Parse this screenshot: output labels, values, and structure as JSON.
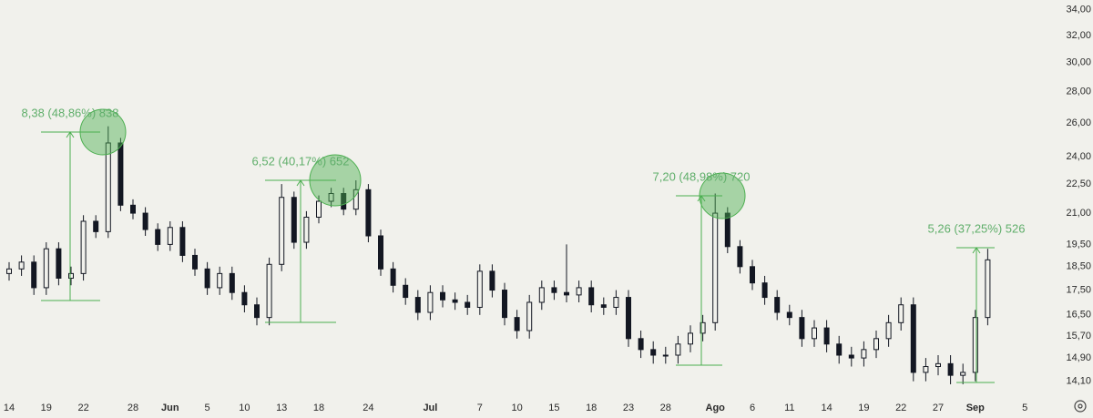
{
  "chart_data": {
    "type": "candlestick",
    "log_scale": true,
    "color": "#131722",
    "categories": [
      "14",
      null,
      null,
      "19",
      null,
      null,
      "22",
      null,
      null,
      null,
      "28",
      null,
      null,
      "Jun",
      null,
      null,
      "5",
      null,
      null,
      "10",
      null,
      null,
      "13",
      null,
      null,
      "18",
      null,
      null,
      null,
      "24",
      null,
      null,
      null,
      null,
      "Jul",
      null,
      null,
      null,
      "7",
      null,
      null,
      "10",
      null,
      null,
      "15",
      null,
      null,
      "18",
      null,
      null,
      "23",
      null,
      null,
      "28",
      null,
      null,
      null,
      "Ago",
      null,
      null,
      "6",
      null,
      null,
      "11",
      null,
      null,
      "14",
      null,
      null,
      "19",
      null,
      null,
      "22",
      null,
      null,
      "27",
      null,
      null,
      "Sep",
      null,
      null,
      null,
      "5"
    ],
    "open": [
      18.2,
      18.4,
      18.7,
      17.6,
      19.3,
      18.0,
      18.2,
      20.6,
      20.1,
      24.8,
      21.4,
      21.0,
      20.2,
      19.5,
      20.3,
      19.0,
      18.4,
      17.6,
      18.2,
      17.4,
      16.9,
      16.4,
      18.6,
      21.8,
      19.6,
      20.8,
      21.6,
      22.0,
      21.2,
      22.2,
      19.9,
      18.4,
      17.7,
      17.2,
      16.6,
      17.4,
      17.1,
      17.0,
      16.8,
      18.3,
      17.5,
      16.4,
      15.9,
      17.0,
      17.6,
      17.4,
      17.3,
      17.6,
      16.9,
      16.8,
      17.2,
      15.6,
      15.2,
      15.0,
      15.0,
      15.4,
      15.8,
      16.2,
      21.0,
      19.4,
      18.5,
      17.8,
      17.2,
      16.6,
      16.4,
      15.6,
      16.0,
      15.4,
      15.0,
      14.9,
      15.2,
      15.6,
      16.2,
      16.9,
      14.4,
      14.6,
      14.7,
      14.3,
      14.4,
      16.4,
      null,
      null,
      null
    ],
    "high": [
      18.7,
      19.0,
      19.0,
      19.6,
      19.6,
      18.5,
      20.9,
      20.9,
      25.8,
      25.1,
      21.7,
      21.3,
      20.5,
      20.6,
      20.6,
      19.3,
      18.7,
      18.5,
      18.5,
      17.7,
      17.2,
      18.9,
      22.5,
      22.1,
      21.1,
      21.9,
      22.3,
      22.3,
      22.7,
      22.5,
      20.2,
      18.7,
      18.0,
      17.5,
      17.7,
      17.7,
      17.4,
      17.3,
      18.6,
      18.6,
      17.8,
      16.7,
      17.3,
      17.9,
      17.9,
      19.5,
      17.9,
      17.9,
      17.2,
      17.5,
      17.5,
      15.9,
      15.5,
      15.3,
      15.7,
      16.1,
      16.5,
      22.0,
      21.3,
      19.7,
      18.8,
      18.1,
      17.5,
      16.9,
      16.7,
      16.3,
      16.3,
      15.7,
      15.3,
      15.5,
      15.9,
      16.5,
      17.2,
      17.2,
      14.9,
      15.0,
      15.0,
      14.7,
      16.7,
      19.3,
      null,
      null,
      null
    ],
    "low": [
      17.9,
      18.1,
      17.3,
      17.3,
      17.7,
      17.7,
      17.9,
      19.8,
      19.8,
      21.1,
      20.7,
      19.9,
      19.2,
      19.2,
      18.7,
      18.1,
      17.3,
      17.3,
      17.1,
      16.6,
      16.1,
      16.1,
      18.3,
      19.3,
      19.3,
      20.5,
      21.3,
      20.9,
      20.9,
      19.6,
      18.1,
      17.4,
      16.9,
      16.3,
      16.3,
      16.8,
      16.7,
      16.5,
      16.5,
      17.2,
      16.1,
      15.6,
      15.6,
      16.7,
      17.1,
      17.0,
      17.0,
      16.6,
      16.5,
      16.5,
      15.3,
      14.9,
      14.7,
      14.7,
      14.7,
      15.1,
      15.5,
      15.9,
      19.1,
      18.2,
      17.5,
      16.9,
      16.3,
      16.1,
      15.3,
      15.3,
      15.1,
      14.7,
      14.6,
      14.6,
      14.9,
      15.3,
      15.9,
      14.1,
      14.1,
      14.3,
      14.0,
      14.0,
      14.1,
      16.1,
      null,
      null,
      null
    ],
    "close": [
      18.4,
      18.7,
      17.6,
      19.3,
      18.0,
      18.2,
      20.6,
      20.1,
      24.8,
      21.4,
      21.0,
      20.2,
      19.5,
      20.3,
      19.0,
      18.4,
      17.6,
      18.2,
      17.4,
      16.9,
      16.4,
      18.6,
      21.8,
      19.6,
      20.8,
      21.6,
      22.0,
      21.2,
      22.2,
      19.9,
      18.4,
      17.7,
      17.2,
      16.6,
      17.4,
      17.1,
      17.0,
      16.8,
      18.3,
      17.5,
      16.4,
      15.9,
      17.0,
      17.6,
      17.4,
      17.3,
      17.6,
      16.9,
      16.8,
      17.2,
      15.6,
      15.2,
      15.0,
      15.0,
      15.4,
      15.8,
      16.2,
      21.0,
      19.4,
      18.5,
      17.8,
      17.2,
      16.6,
      16.4,
      15.6,
      16.0,
      15.4,
      15.0,
      14.9,
      15.2,
      15.6,
      16.2,
      16.9,
      14.4,
      14.6,
      14.7,
      14.3,
      14.4,
      16.4,
      18.8,
      null,
      null,
      null
    ],
    "ylim": [
      13.7,
      34.8
    ],
    "yticks": [
      {
        "value": 14.1,
        "label": "14,10"
      },
      {
        "value": 14.9,
        "label": "14,90"
      },
      {
        "value": 15.7,
        "label": "15,70"
      },
      {
        "value": 16.5,
        "label": "16,50"
      },
      {
        "value": 17.5,
        "label": "17,50"
      },
      {
        "value": 18.5,
        "label": "18,50"
      },
      {
        "value": 19.5,
        "label": "19,50"
      },
      {
        "value": 21,
        "label": "21,00"
      },
      {
        "value": 22.5,
        "label": "22,50"
      },
      {
        "value": 24,
        "label": "24,00"
      },
      {
        "value": 26,
        "label": "26,00"
      },
      {
        "value": 28,
        "label": "28,00"
      },
      {
        "value": 30,
        "label": "30,00"
      },
      {
        "value": 32,
        "label": "32,00"
      },
      {
        "value": 34,
        "label": "34,00"
      }
    ],
    "annotations": [
      "8,38 (48,86%) 838",
      "6,52 (40,17%) 652",
      "7,20 (48,98%) 720",
      "5,26 (37,25%) 526"
    ]
  }
}
